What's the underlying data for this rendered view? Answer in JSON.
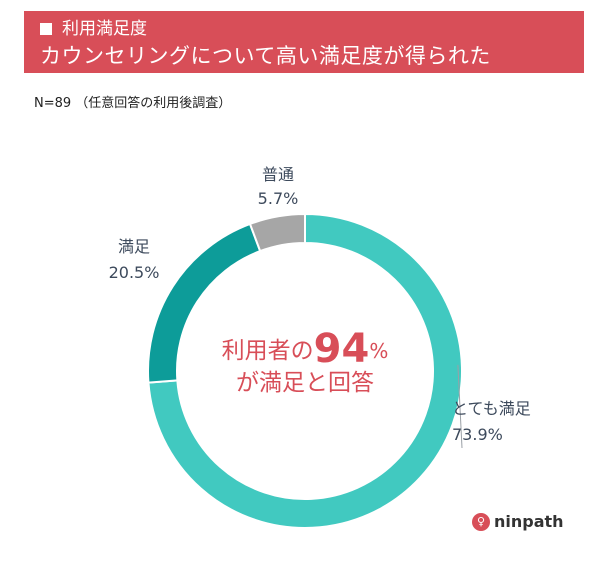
{
  "header": {
    "line1": "利用満足度",
    "line2": "カウンセリングについて高い満足度が得られた"
  },
  "sample_note": "N=89 （任意回答の利用後調査）",
  "center": {
    "prefix": "利用者の",
    "number": "94",
    "percent": "%",
    "suffix": "が満足と回答"
  },
  "logo": {
    "text": "ninpath",
    "icon": "ninpath-logo-icon"
  },
  "chart_data": {
    "type": "pie",
    "donut": true,
    "title": "利用満足度",
    "n": 89,
    "slices": [
      {
        "label": "とても満足",
        "value": 73.9,
        "display": "73.9%",
        "color": "#41c9c0"
      },
      {
        "label": "満足",
        "value": 20.5,
        "display": "20.5%",
        "color": "#0d9c99"
      },
      {
        "label": "普通",
        "value": 5.7,
        "display": "5.7%",
        "color": "#a6a6a6"
      }
    ]
  }
}
